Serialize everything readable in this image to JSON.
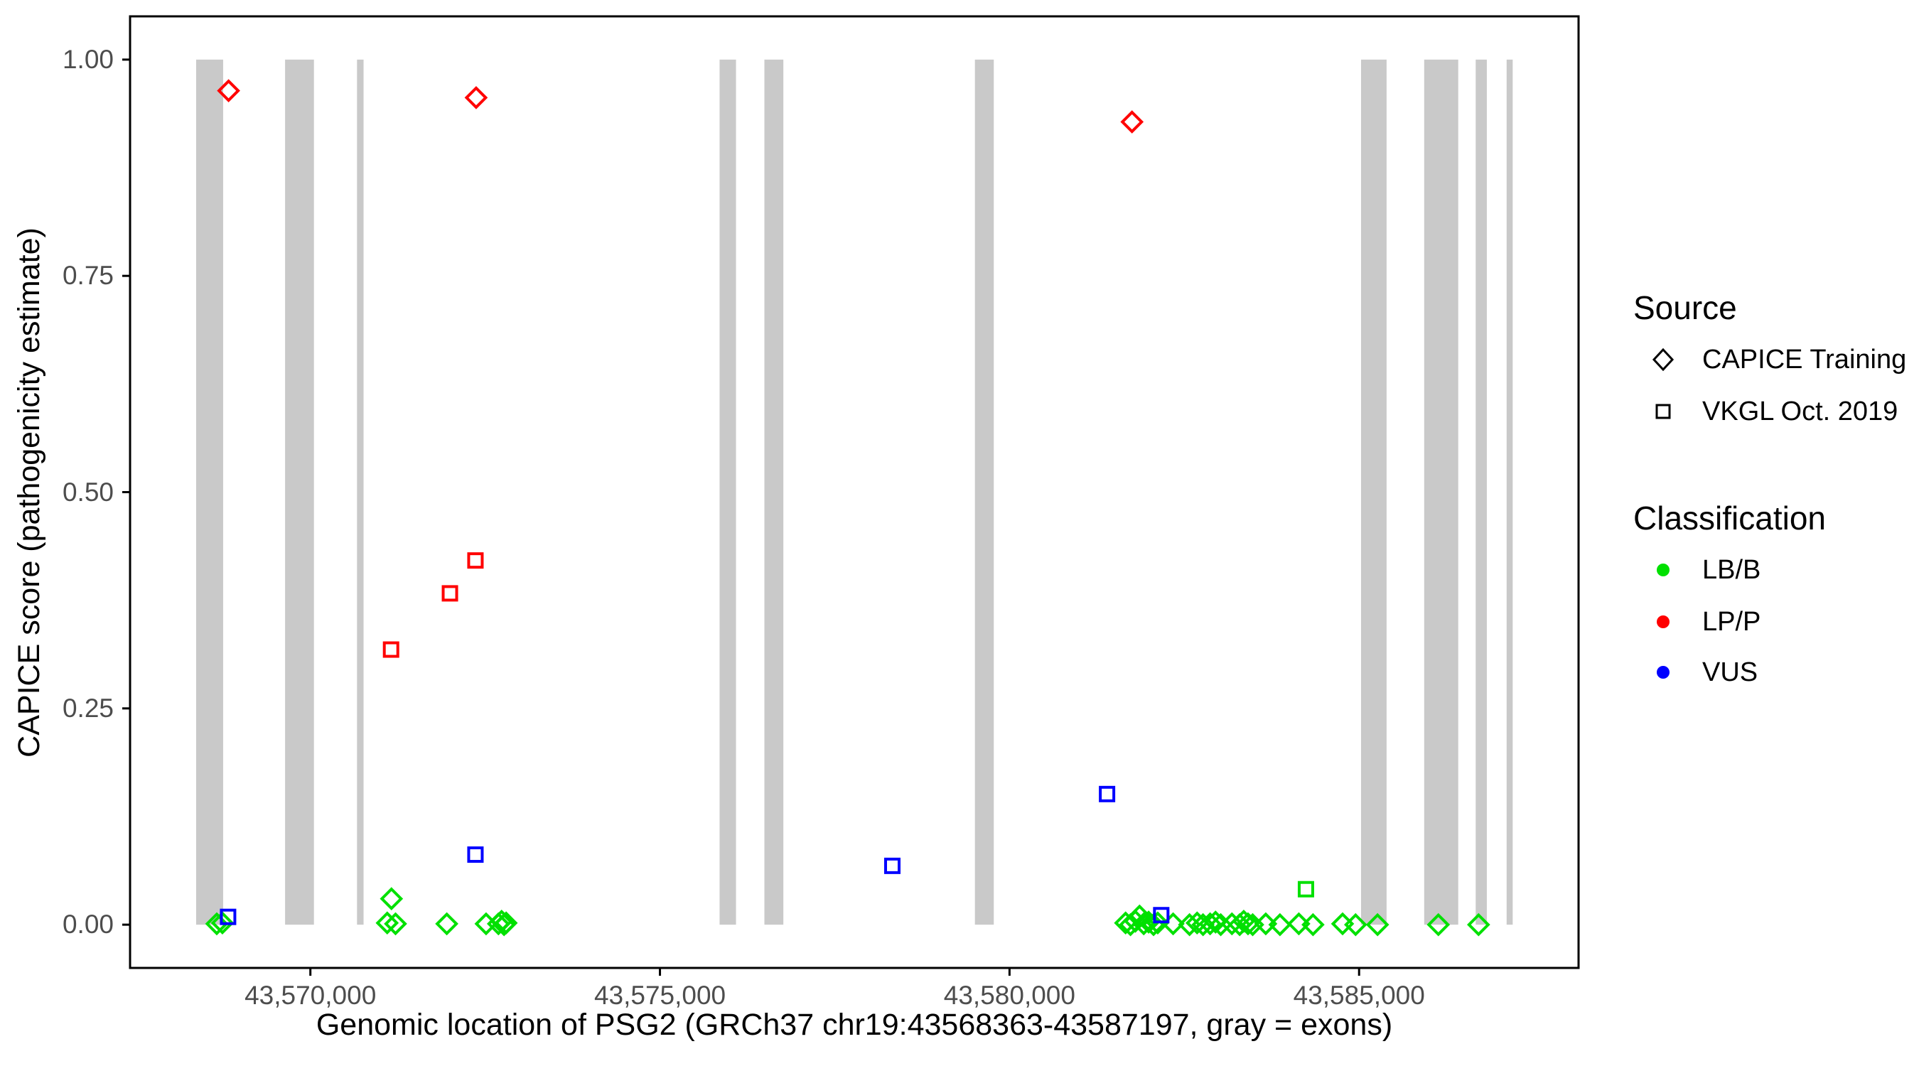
{
  "figure": {
    "background": "#FFFFFF",
    "description": "Scatter plot of CAPICE pathogenicity scores along the PSG2 gene with exon regions shaded gray"
  },
  "chart_data": {
    "type": "scatter",
    "xlabel": "Genomic location of PSG2 (GRCh37 chr19:43568363-43587197, gray = exons)",
    "ylabel": "CAPICE score (pathogenicity estimate)",
    "xlim": [
      43567421,
      43588139
    ],
    "ylim": [
      -0.05,
      1.05
    ],
    "grid": false,
    "x_ticks": [
      {
        "value": 43570000,
        "label": "43,570,000"
      },
      {
        "value": 43575000,
        "label": "43,575,000"
      },
      {
        "value": 43580000,
        "label": "43,580,000"
      },
      {
        "value": 43585000,
        "label": "43,585,000"
      }
    ],
    "y_ticks": [
      {
        "value": 0.0,
        "label": "0.00"
      },
      {
        "value": 0.25,
        "label": "0.25"
      },
      {
        "value": 0.5,
        "label": "0.50"
      },
      {
        "value": 0.75,
        "label": "0.75"
      },
      {
        "value": 1.0,
        "label": "1.00"
      }
    ],
    "panel": {
      "border_color": "#000000",
      "tick_color": "#000000",
      "tick_label_color": "#4D4D4D",
      "exon_color": "#C9C9C9"
    },
    "colors": {
      "LB/B": "#00E000",
      "LP/P": "#FF0000",
      "VUS": "#0000FF"
    },
    "marker_by_source": {
      "CAPICE Training": "diamond",
      "VKGL Oct. 2019": "square"
    },
    "exons": [
      {
        "start": 43568366,
        "end": 43568752
      },
      {
        "start": 43569638,
        "end": 43570051
      },
      {
        "start": 43570667,
        "end": 43570761
      },
      {
        "start": 43575853,
        "end": 43576088
      },
      {
        "start": 43576494,
        "end": 43576765
      },
      {
        "start": 43579505,
        "end": 43579775
      },
      {
        "start": 43585028,
        "end": 43585393
      },
      {
        "start": 43585931,
        "end": 43586418
      },
      {
        "start": 43586668,
        "end": 43586827
      },
      {
        "start": 43587110,
        "end": 43587197
      }
    ],
    "series": [
      {
        "source": "CAPICE Training",
        "classification": "LP/P",
        "marker": "diamond",
        "color": "#FF0000",
        "points": [
          {
            "pos": 43568830,
            "score": 0.964
          },
          {
            "pos": 43572371,
            "score": 0.956
          },
          {
            "pos": 43581752,
            "score": 0.928
          }
        ]
      },
      {
        "source": "CAPICE Training",
        "classification": "LB/B",
        "marker": "diamond",
        "color": "#00E000",
        "points": [
          {
            "pos": 43568661,
            "score": 0.001
          },
          {
            "pos": 43568742,
            "score": 0.002
          },
          {
            "pos": 43571099,
            "score": 0.002
          },
          {
            "pos": 43571160,
            "score": 0.03
          },
          {
            "pos": 43571218,
            "score": 0.001
          },
          {
            "pos": 43571951,
            "score": 0.001
          },
          {
            "pos": 43572513,
            "score": 0.001
          },
          {
            "pos": 43572690,
            "score": 0.001
          },
          {
            "pos": 43572735,
            "score": 0.004
          },
          {
            "pos": 43572770,
            "score": 0.0
          },
          {
            "pos": 43572800,
            "score": 0.002
          },
          {
            "pos": 43581660,
            "score": 0.002
          },
          {
            "pos": 43581730,
            "score": 0.0
          },
          {
            "pos": 43581800,
            "score": 0.004
          },
          {
            "pos": 43581860,
            "score": 0.01
          },
          {
            "pos": 43581920,
            "score": 0.001
          },
          {
            "pos": 43581990,
            "score": 0.003
          },
          {
            "pos": 43582060,
            "score": 0.0
          },
          {
            "pos": 43582120,
            "score": 0.002
          },
          {
            "pos": 43582340,
            "score": 0.001
          },
          {
            "pos": 43582575,
            "score": 0.0
          },
          {
            "pos": 43582683,
            "score": 0.002
          },
          {
            "pos": 43582768,
            "score": 0.0
          },
          {
            "pos": 43582869,
            "score": 0.001
          },
          {
            "pos": 43582947,
            "score": 0.003
          },
          {
            "pos": 43583021,
            "score": 0.0
          },
          {
            "pos": 43583181,
            "score": 0.001
          },
          {
            "pos": 43583292,
            "score": 0.0
          },
          {
            "pos": 43583350,
            "score": 0.004
          },
          {
            "pos": 43583411,
            "score": 0.001
          },
          {
            "pos": 43583478,
            "score": 0.0
          },
          {
            "pos": 43583665,
            "score": 0.001
          },
          {
            "pos": 43583868,
            "score": 0.0
          },
          {
            "pos": 43584138,
            "score": 0.001
          },
          {
            "pos": 43584341,
            "score": 0.0
          },
          {
            "pos": 43584764,
            "score": 0.001
          },
          {
            "pos": 43584950,
            "score": 0.0
          },
          {
            "pos": 43585264,
            "score": 0.0
          },
          {
            "pos": 43586134,
            "score": 0.0
          },
          {
            "pos": 43586709,
            "score": 0.0
          }
        ]
      },
      {
        "source": "VKGL Oct. 2019",
        "classification": "LP/P",
        "marker": "square",
        "color": "#FF0000",
        "points": [
          {
            "pos": 43571154,
            "score": 0.318
          },
          {
            "pos": 43571996,
            "score": 0.383
          },
          {
            "pos": 43572361,
            "score": 0.421
          }
        ]
      },
      {
        "source": "VKGL Oct. 2019",
        "classification": "VUS",
        "marker": "square",
        "color": "#0000FF",
        "points": [
          {
            "pos": 43568823,
            "score": 0.009
          },
          {
            "pos": 43572361,
            "score": 0.081
          },
          {
            "pos": 43578324,
            "score": 0.068
          },
          {
            "pos": 43581395,
            "score": 0.151
          },
          {
            "pos": 43582170,
            "score": 0.011
          }
        ]
      },
      {
        "source": "VKGL Oct. 2019",
        "classification": "LB/B",
        "marker": "square",
        "color": "#00E000",
        "points": [
          {
            "pos": 43584240,
            "score": 0.041
          }
        ]
      }
    ]
  },
  "legend": {
    "source": {
      "title": "Source",
      "items": [
        {
          "label": "CAPICE Training",
          "marker": "diamond"
        },
        {
          "label": "VKGL Oct. 2019",
          "marker": "square"
        }
      ]
    },
    "classification": {
      "title": "Classification",
      "items": [
        {
          "label": "LB/B",
          "color": "#00E000"
        },
        {
          "label": "LP/P",
          "color": "#FF0000"
        },
        {
          "label": "VUS",
          "color": "#0000FF"
        }
      ]
    }
  }
}
